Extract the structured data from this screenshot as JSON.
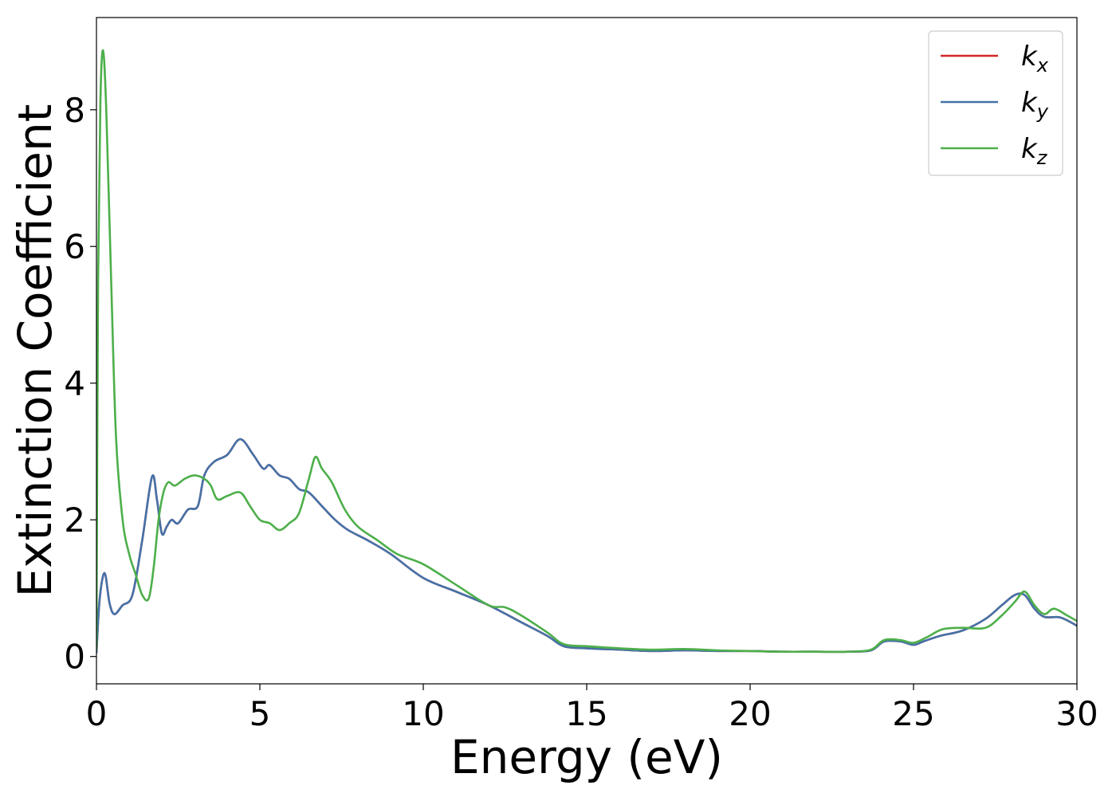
{
  "chart_data": {
    "type": "line",
    "xlabel": "Energy (eV)",
    "ylabel": "Extinction Coefficient",
    "xlim": [
      0,
      30
    ],
    "ylim": [
      -0.4,
      9.35
    ],
    "xticks": [
      0,
      5,
      10,
      15,
      20,
      25,
      30
    ],
    "yticks": [
      0,
      2,
      4,
      6,
      8
    ],
    "grid": false,
    "legend_position": "top-right",
    "series": [
      {
        "name": "k_x",
        "label_main": "k",
        "label_sub": "x",
        "color": "#d62728",
        "x": [
          0,
          0.1,
          0.25,
          0.4,
          0.55,
          0.8,
          1.1,
          1.4,
          1.7,
          1.85,
          2.0,
          2.15,
          2.3,
          2.5,
          2.8,
          3.1,
          3.3,
          3.6,
          4.0,
          4.4,
          4.8,
          5.1,
          5.3,
          5.6,
          5.9,
          6.2,
          6.5,
          6.9,
          7.3,
          7.7,
          8.3,
          9.0,
          10.0,
          11.0,
          12.0,
          13.0,
          13.8,
          14.3,
          15.0,
          16.0,
          17.0,
          18.0,
          19.0,
          20.0,
          21.0,
          22.0,
          23.0,
          23.7,
          24.1,
          24.6,
          25.0,
          25.3,
          25.8,
          26.5,
          27.2,
          27.7,
          28.1,
          28.4,
          28.7,
          29.0,
          29.5,
          30.0
        ],
        "y": [
          0.05,
          0.85,
          1.22,
          0.78,
          0.62,
          0.75,
          0.9,
          1.7,
          2.63,
          2.3,
          1.8,
          1.9,
          2.0,
          1.95,
          2.15,
          2.2,
          2.65,
          2.85,
          2.95,
          3.18,
          2.95,
          2.75,
          2.8,
          2.65,
          2.6,
          2.45,
          2.4,
          2.2,
          2.0,
          1.85,
          1.7,
          1.5,
          1.15,
          0.95,
          0.75,
          0.5,
          0.3,
          0.15,
          0.12,
          0.1,
          0.08,
          0.09,
          0.08,
          0.08,
          0.07,
          0.07,
          0.07,
          0.09,
          0.22,
          0.22,
          0.17,
          0.22,
          0.3,
          0.38,
          0.55,
          0.75,
          0.9,
          0.9,
          0.7,
          0.58,
          0.57,
          0.45
        ]
      },
      {
        "name": "k_y",
        "label_main": "k",
        "label_sub": "y",
        "color": "#4472a8",
        "x": [
          0,
          0.1,
          0.25,
          0.4,
          0.55,
          0.8,
          1.1,
          1.4,
          1.7,
          1.85,
          2.0,
          2.15,
          2.3,
          2.5,
          2.8,
          3.1,
          3.3,
          3.6,
          4.0,
          4.4,
          4.8,
          5.1,
          5.3,
          5.6,
          5.9,
          6.2,
          6.5,
          6.9,
          7.3,
          7.7,
          8.3,
          9.0,
          10.0,
          11.0,
          12.0,
          13.0,
          13.8,
          14.3,
          15.0,
          16.0,
          17.0,
          18.0,
          19.0,
          20.0,
          21.0,
          22.0,
          23.0,
          23.7,
          24.1,
          24.6,
          25.0,
          25.3,
          25.8,
          26.5,
          27.2,
          27.7,
          28.1,
          28.4,
          28.7,
          29.0,
          29.5,
          30.0
        ],
        "y": [
          0.05,
          0.85,
          1.22,
          0.78,
          0.62,
          0.75,
          0.9,
          1.7,
          2.63,
          2.3,
          1.8,
          1.9,
          2.0,
          1.95,
          2.15,
          2.2,
          2.65,
          2.85,
          2.95,
          3.18,
          2.95,
          2.75,
          2.8,
          2.65,
          2.6,
          2.45,
          2.4,
          2.2,
          2.0,
          1.85,
          1.7,
          1.5,
          1.15,
          0.95,
          0.75,
          0.5,
          0.3,
          0.15,
          0.12,
          0.1,
          0.08,
          0.09,
          0.08,
          0.08,
          0.07,
          0.07,
          0.07,
          0.09,
          0.22,
          0.22,
          0.17,
          0.22,
          0.3,
          0.38,
          0.55,
          0.75,
          0.9,
          0.9,
          0.7,
          0.58,
          0.57,
          0.45
        ]
      },
      {
        "name": "k_z",
        "label_main": "k",
        "label_sub": "z",
        "color": "#4daf4a",
        "x": [
          0,
          0.05,
          0.12,
          0.2,
          0.3,
          0.45,
          0.6,
          0.8,
          1.0,
          1.2,
          1.4,
          1.6,
          1.75,
          1.9,
          2.05,
          2.2,
          2.4,
          2.7,
          3.0,
          3.3,
          3.5,
          3.7,
          4.0,
          4.4,
          4.7,
          5.0,
          5.3,
          5.6,
          5.9,
          6.2,
          6.5,
          6.7,
          6.9,
          7.2,
          7.6,
          8.0,
          8.6,
          9.2,
          10.0,
          11.0,
          12.0,
          12.5,
          13.0,
          13.8,
          14.3,
          15.0,
          16.0,
          17.0,
          18.0,
          19.0,
          20.0,
          21.0,
          22.0,
          23.0,
          23.7,
          24.1,
          24.6,
          25.0,
          25.4,
          25.9,
          26.5,
          27.2,
          27.7,
          28.1,
          28.4,
          28.7,
          29.0,
          29.3,
          29.7,
          30.0
        ],
        "y": [
          0.1,
          5.5,
          8.1,
          8.87,
          8.0,
          5.5,
          3.2,
          2.0,
          1.5,
          1.2,
          0.9,
          0.85,
          1.3,
          2.0,
          2.4,
          2.55,
          2.5,
          2.6,
          2.65,
          2.6,
          2.5,
          2.3,
          2.35,
          2.4,
          2.2,
          2.0,
          1.95,
          1.85,
          1.95,
          2.1,
          2.6,
          2.92,
          2.75,
          2.55,
          2.15,
          1.9,
          1.7,
          1.5,
          1.35,
          1.05,
          0.75,
          0.72,
          0.6,
          0.35,
          0.18,
          0.15,
          0.12,
          0.1,
          0.11,
          0.09,
          0.08,
          0.07,
          0.07,
          0.07,
          0.1,
          0.24,
          0.24,
          0.2,
          0.28,
          0.4,
          0.42,
          0.42,
          0.6,
          0.8,
          0.95,
          0.75,
          0.62,
          0.7,
          0.6,
          0.52
        ]
      }
    ]
  }
}
